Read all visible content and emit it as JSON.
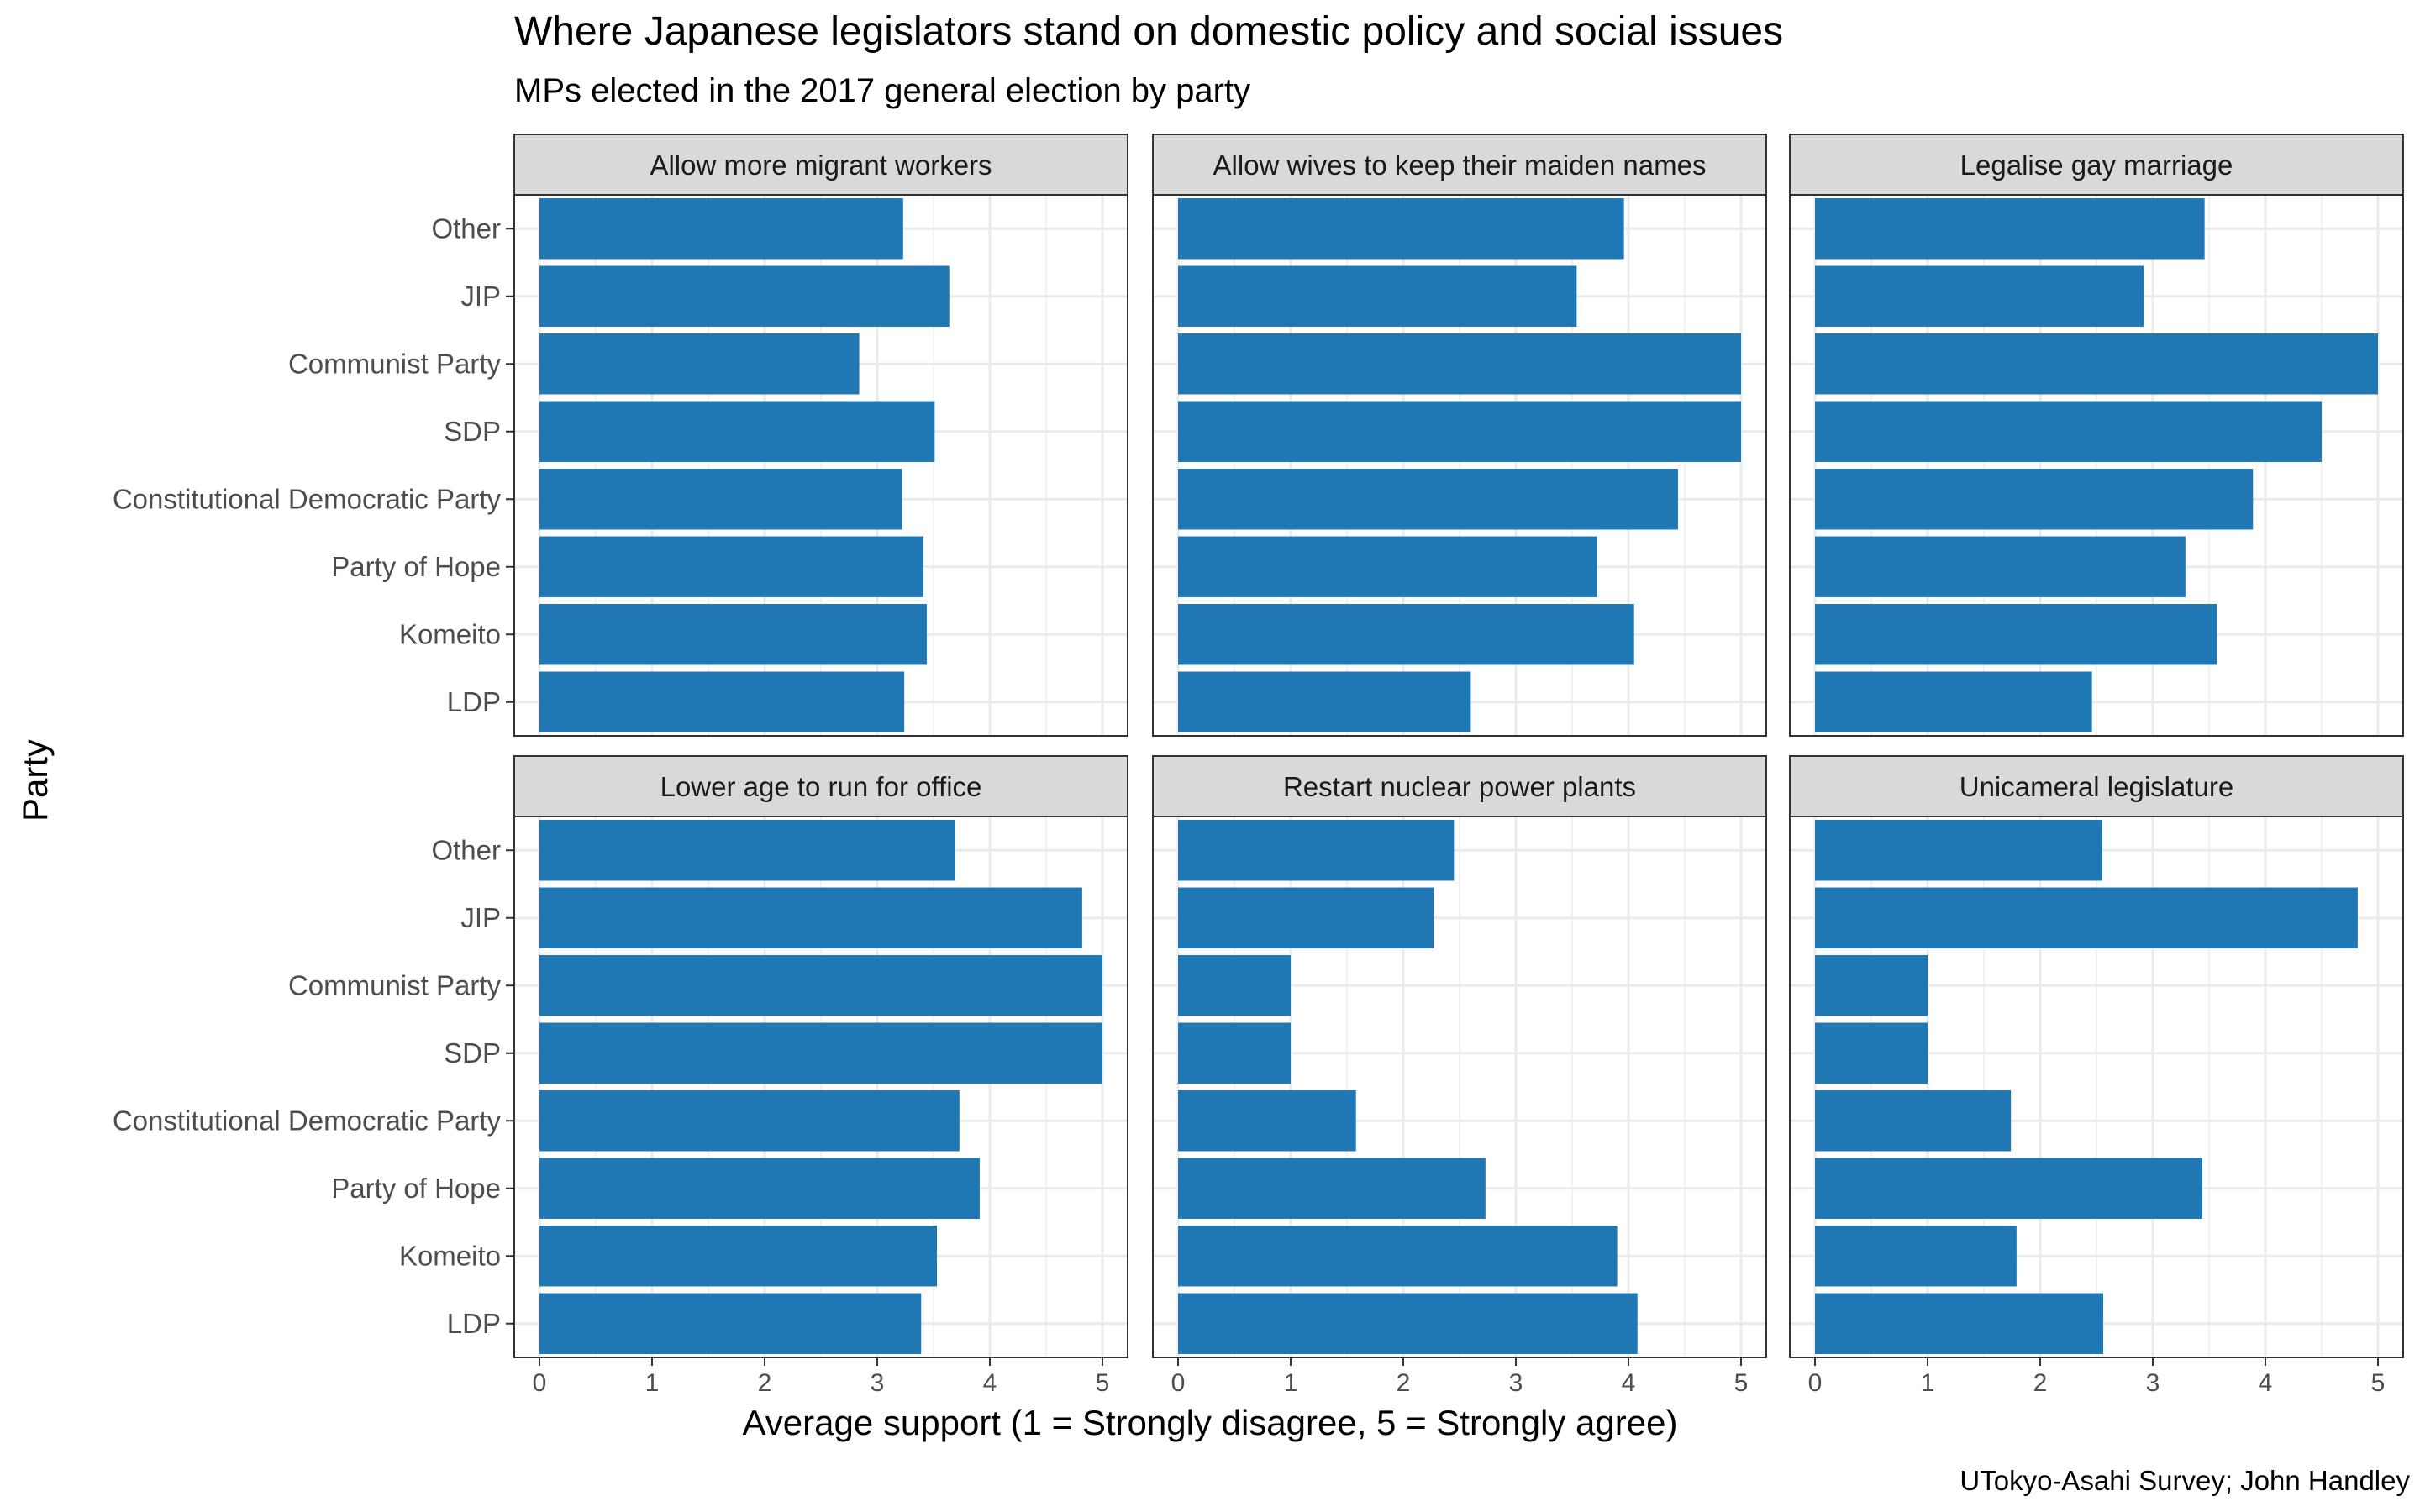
{
  "title": "Where Japanese legislators stand on domestic policy and social issues",
  "subtitle": "MPs elected in the 2017 general election by party",
  "caption": "UTokyo-Asahi Survey; John Handley",
  "chart_data": {
    "type": "bar",
    "orientation": "horizontal",
    "facets": "2x3",
    "xlabel": "Average support (1 = Strongly disagree, 5 = Strongly agree)",
    "ylabel": "Party",
    "xlim": [
      0,
      5
    ],
    "xticks": [
      0,
      1,
      2,
      3,
      4,
      5
    ],
    "bar_color": "#1f78b4",
    "strip_color": "#d9d9d9",
    "grid": true,
    "categories": [
      "Other",
      "JIP",
      "Communist Party",
      "SDP",
      "Constitutional Democratic Party",
      "Party of Hope",
      "Komeito",
      "LDP"
    ],
    "panels": [
      {
        "title": "Allow more migrant workers",
        "values": [
          3.23,
          3.64,
          2.84,
          3.51,
          3.22,
          3.41,
          3.44,
          3.24
        ]
      },
      {
        "title": "Allow wives to keep their maiden names",
        "values": [
          3.96,
          3.54,
          5.0,
          5.0,
          4.44,
          3.72,
          4.05,
          2.6
        ]
      },
      {
        "title": "Legalise gay marriage",
        "values": [
          3.46,
          2.92,
          5.0,
          4.5,
          3.89,
          3.29,
          3.57,
          2.46
        ]
      },
      {
        "title": "Lower age to run for office",
        "values": [
          3.69,
          4.82,
          5.0,
          5.0,
          3.73,
          3.91,
          3.53,
          3.39
        ]
      },
      {
        "title": "Restart nuclear power plants",
        "values": [
          2.45,
          2.27,
          1.0,
          1.0,
          1.58,
          2.73,
          3.9,
          4.08
        ]
      },
      {
        "title": "Unicameral legislature",
        "values": [
          2.55,
          4.82,
          1.0,
          1.0,
          1.74,
          3.44,
          1.79,
          2.56
        ]
      }
    ]
  }
}
